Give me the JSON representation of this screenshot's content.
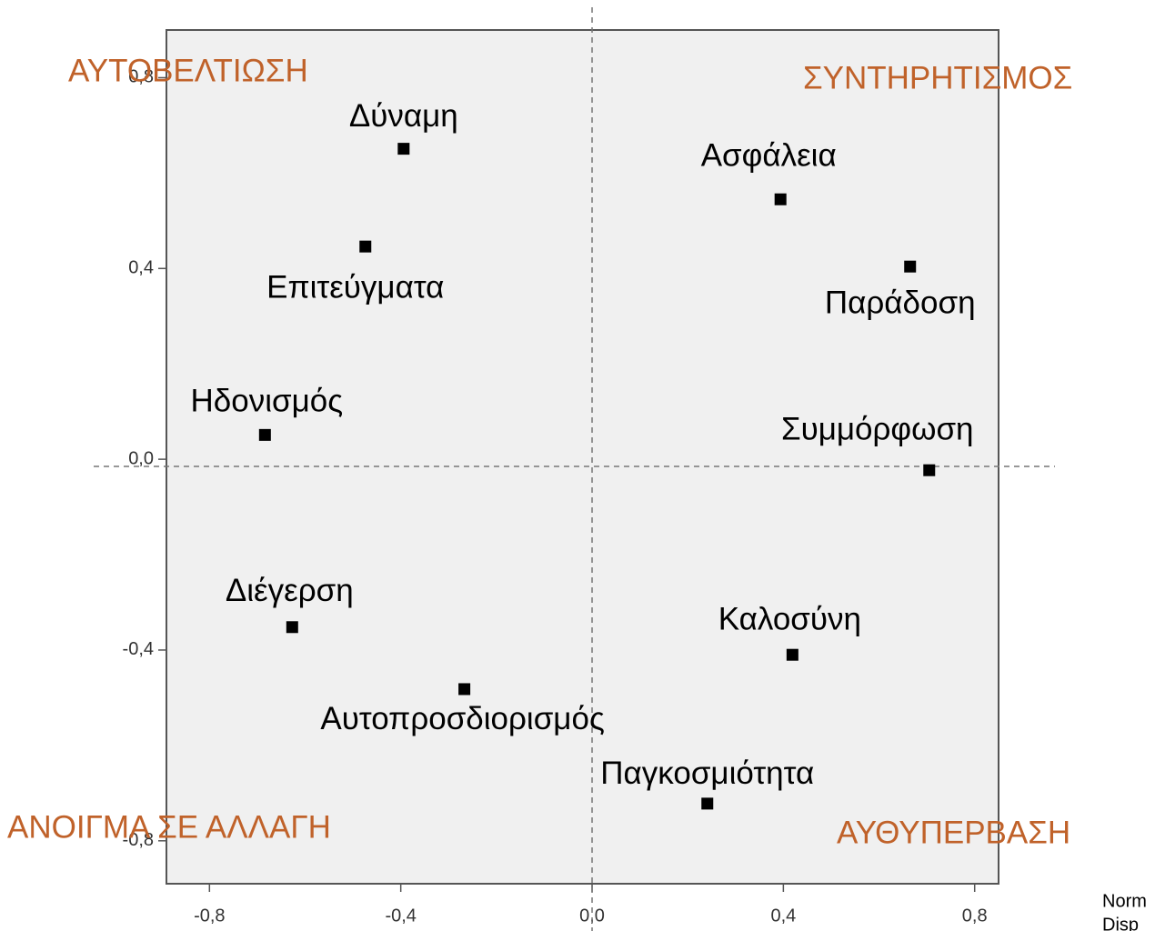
{
  "chart_data": {
    "type": "scatter",
    "x": [
      -0.394,
      -0.474,
      -0.684,
      -0.627,
      -0.267,
      0.241,
      0.419,
      0.705,
      0.665,
      0.394
    ],
    "values": [
      0.651,
      0.446,
      0.051,
      -0.352,
      -0.482,
      -0.722,
      -0.41,
      -0.023,
      0.404,
      0.545
    ],
    "point_labels": [
      "Δύναμη",
      "Επιτεύγματα",
      "Ηδονισμός",
      "Διέγερση",
      "Αυτοπροσδιορισμός",
      "Παγκοσμιότητα",
      "Καλοσύνη",
      "Συμμόρφωση",
      "Παράδοση",
      "Ασφάλεια"
    ],
    "color": "#000000",
    "xlim": [
      -0.89,
      0.85
    ],
    "ylim": [
      -0.89,
      0.9
    ],
    "xticks": [
      {
        "value": -0.8,
        "label": "-0,8"
      },
      {
        "value": -0.4,
        "label": "-0,4"
      },
      {
        "value": 0,
        "label": "0,0"
      },
      {
        "value": 0.4,
        "label": "0,4"
      },
      {
        "value": 0.8,
        "label": "0,8"
      }
    ],
    "yticks": [
      {
        "value": -0.8,
        "label": "-0,8"
      },
      {
        "value": -0.4,
        "label": "-0,4"
      },
      {
        "value": 0,
        "label": "0,0"
      },
      {
        "value": 0.4,
        "label": "0,4"
      },
      {
        "value": 0.8,
        "label": "0,8"
      }
    ],
    "reference_lines": {
      "x": 0,
      "y": -0.015
    },
    "annotations": [
      "ΑΥΤΟΒΕΛΤΙΩΣΗ",
      "ΣΥΝΤΗΡΗΤΙΣΜΟΣ",
      "ΑΝΟΙΓΜΑ ΣΕ ΑΛΛΑΓΗ",
      "ΑΥΘΥΠΕΡΒΑΣΗ"
    ],
    "footnote": [
      "Norm",
      "Disp"
    ]
  }
}
